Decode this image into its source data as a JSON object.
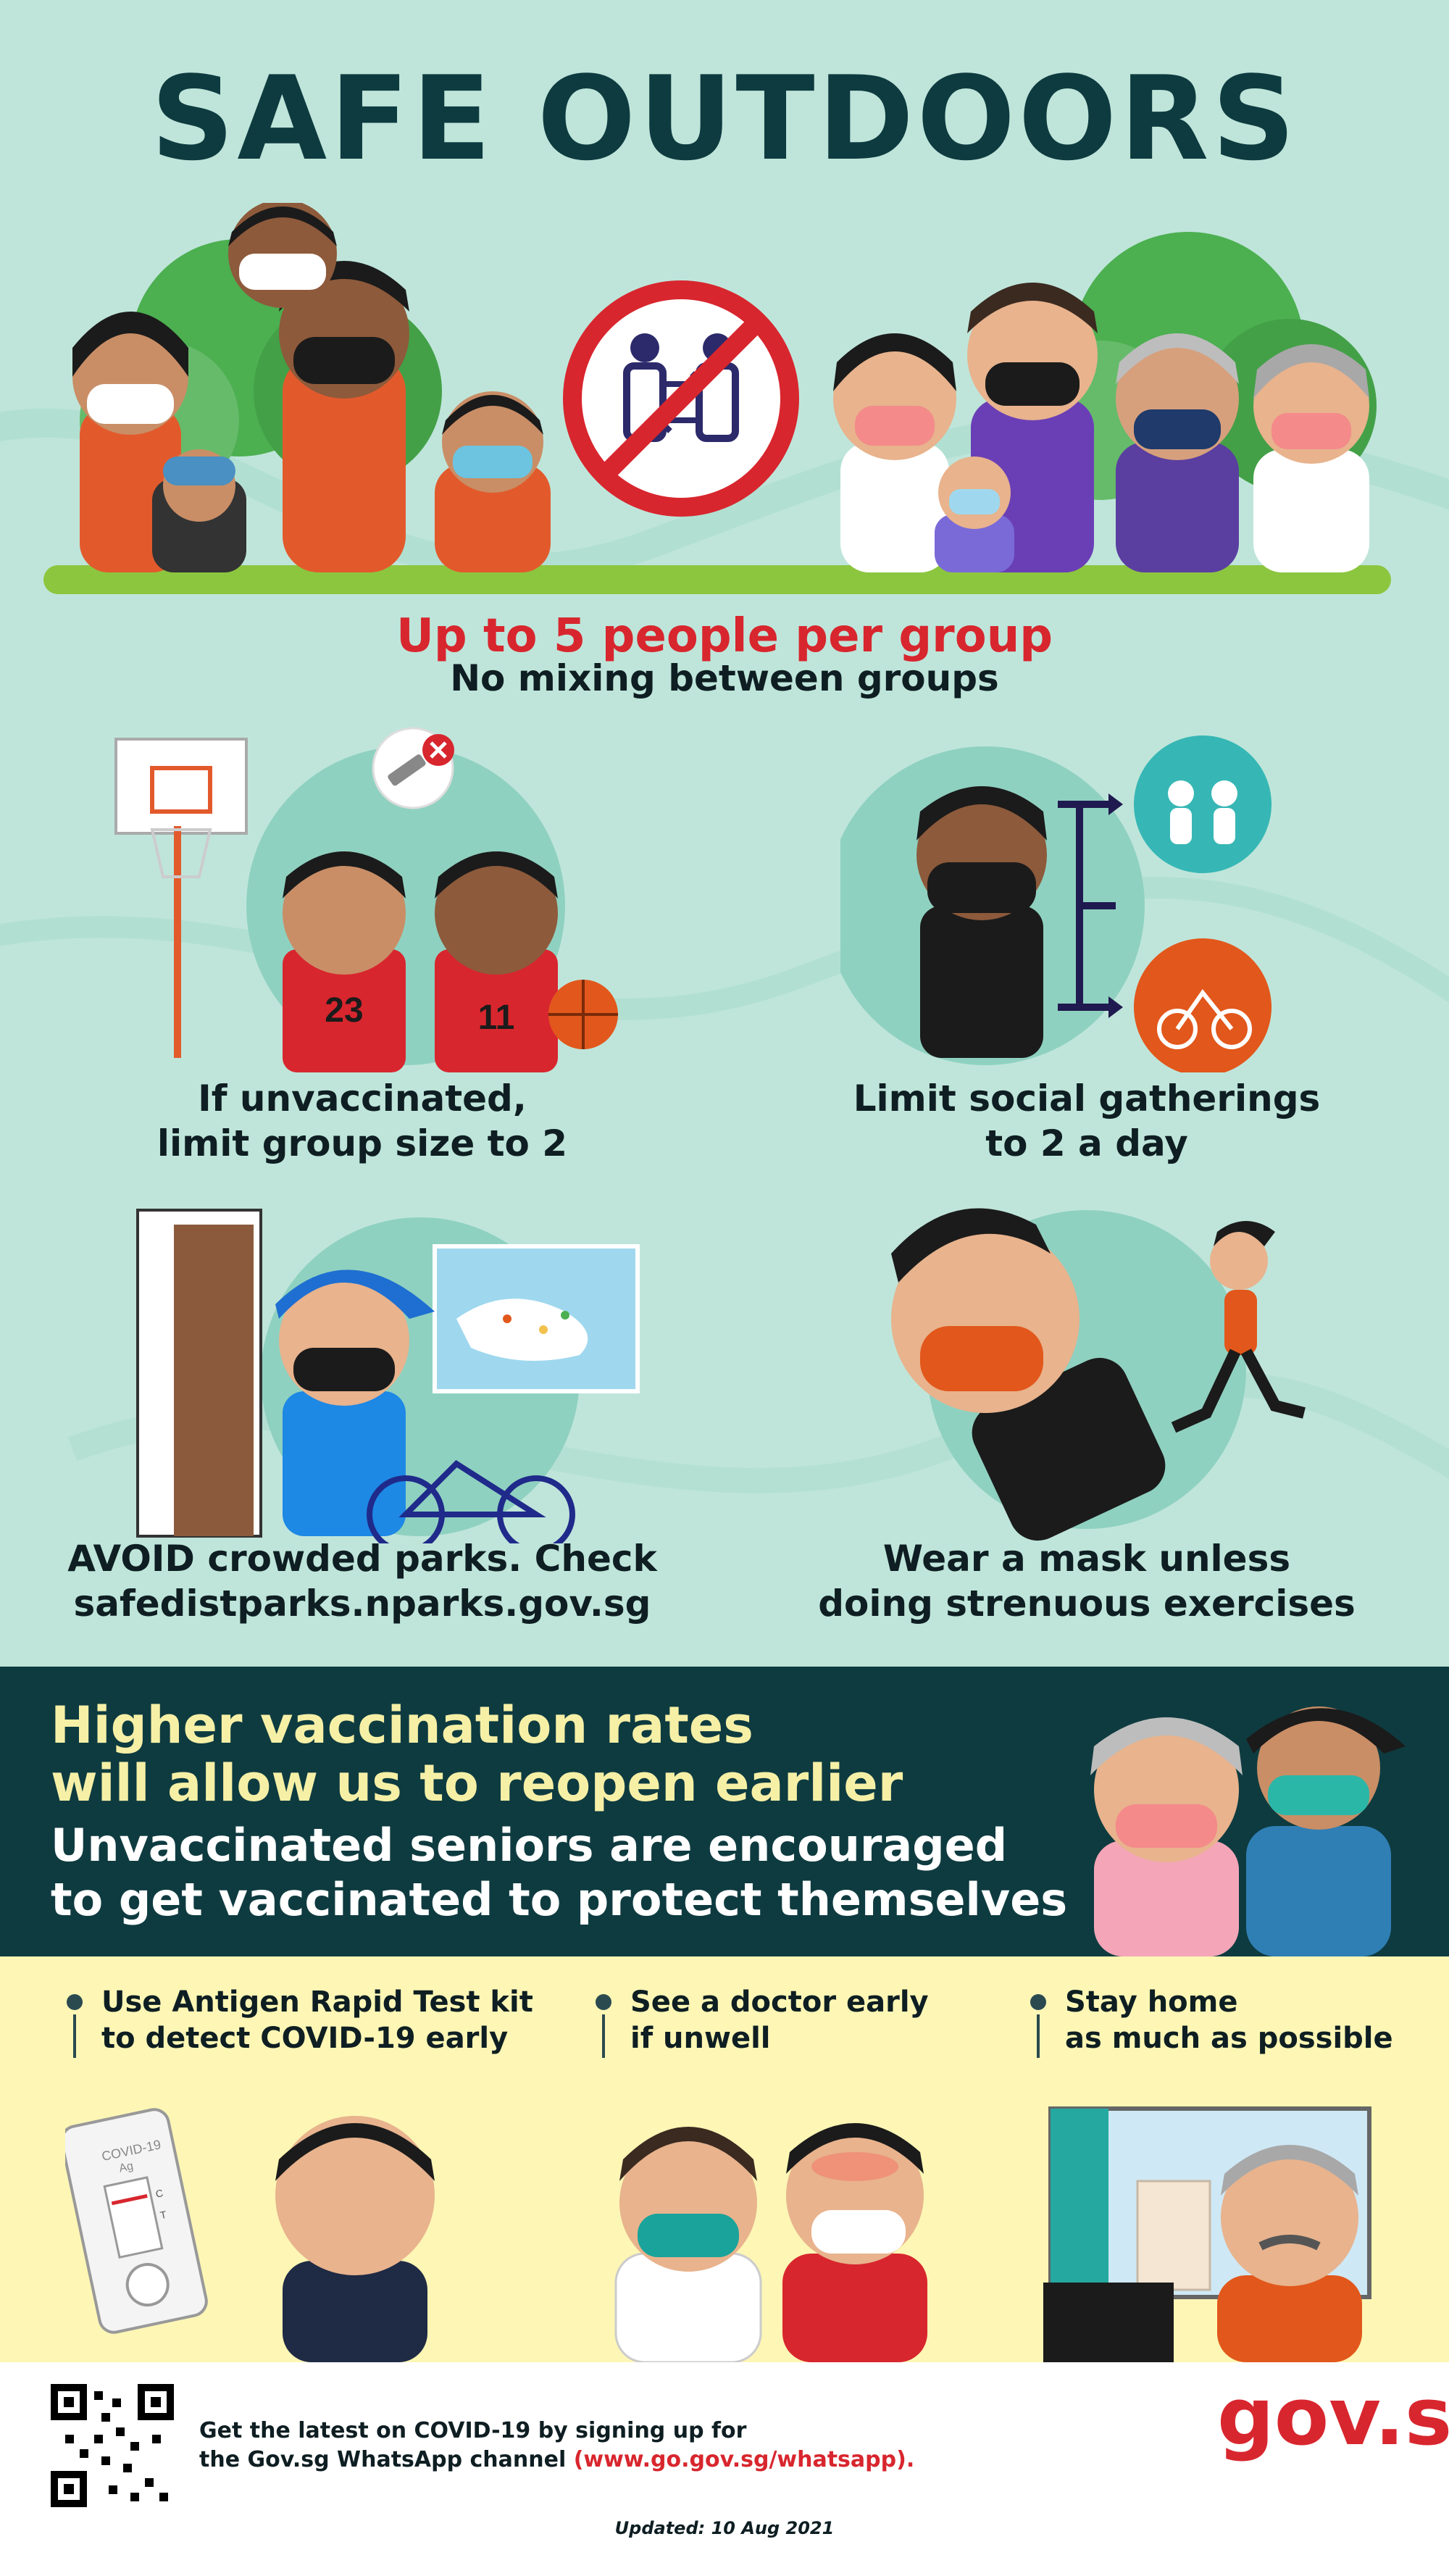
{
  "header": {
    "title": "SAFE OUTDOORS"
  },
  "group_rule": {
    "headline": "Up to 5 people per group",
    "subline": "No mixing between groups"
  },
  "rules": [
    {
      "line1": "If unvaccinated,",
      "line2": "limit group size to 2"
    },
    {
      "line1": "Limit social gatherings",
      "line2": "to 2 a day"
    },
    {
      "line1": "AVOID crowded parks. Check",
      "line2": "safedistparks.nparks.gov.sg"
    },
    {
      "line1": "Wear a mask unless",
      "line2": "doing strenuous exercises"
    }
  ],
  "jersey_numbers": [
    "23",
    "11"
  ],
  "vaccination": {
    "line1": "Higher vaccination rates",
    "line2": "will allow us to reopen earlier",
    "line3": "Unvaccinated seniors are encouraged",
    "line4": "to get vaccinated to protect themselves"
  },
  "tips": [
    {
      "line1": "Use Antigen Rapid Test kit",
      "line2": "to detect COVID-19 early"
    },
    {
      "line1": "See a doctor early",
      "line2": "if unwell"
    },
    {
      "line1": "Stay home",
      "line2": "as much as possible"
    }
  ],
  "test_kit": {
    "label1": "COVID-19",
    "label2": "Ag",
    "mark_c": "C",
    "mark_t": "T"
  },
  "footer": {
    "text1": "Get the latest on COVID-19 by signing up for",
    "text2": "the Gov.sg WhatsApp channel",
    "link": "(www.go.gov.sg/whatsapp).",
    "updated": "Updated: 10 Aug 2021",
    "logo": "gov.sg"
  },
  "colors": {
    "background": "#bfe5da",
    "title": "#0e3b40",
    "accent_red": "#d8262e",
    "band": "#0e3b40",
    "band_text": "#f6f0a6",
    "yellow": "#fdf6b5"
  },
  "icons": [
    "no-mixing-icon",
    "syringe-cross-icon",
    "basketball-icon",
    "group-icon",
    "cycling-icon",
    "qr-code-icon"
  ]
}
